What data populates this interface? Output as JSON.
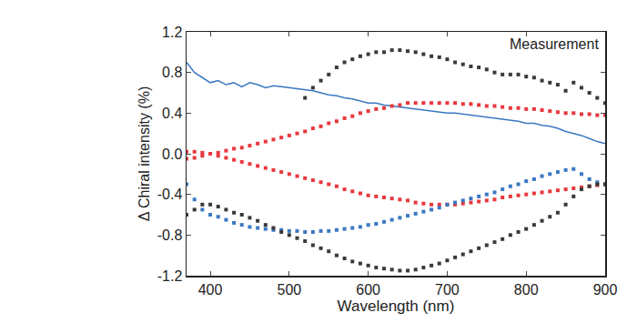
{
  "chart_data": {
    "type": "scatter",
    "x_label": "Wavelength (nm)",
    "y_label": "Δ Chiral intensity (%)",
    "annotations": [
      "Measurement"
    ],
    "xlim": [
      370,
      900
    ],
    "xticks": [
      400,
      500,
      600,
      700,
      800,
      900
    ],
    "ylim": [
      -1.2,
      1.2
    ],
    "yticks": [
      1.2,
      0.8,
      0.4,
      {
        "value": 0,
        "label": "0.0"
      },
      -0.4,
      -0.8,
      -1.2
    ],
    "grid": false,
    "x": [
      370,
      380,
      390,
      400,
      410,
      420,
      430,
      440,
      450,
      460,
      470,
      480,
      490,
      500,
      510,
      520,
      530,
      540,
      550,
      560,
      570,
      580,
      590,
      600,
      610,
      620,
      630,
      640,
      650,
      660,
      670,
      680,
      690,
      700,
      710,
      720,
      730,
      740,
      750,
      760,
      770,
      780,
      790,
      800,
      810,
      820,
      830,
      840,
      850,
      860,
      870,
      880,
      890,
      900
    ],
    "series": [
      {
        "color": "#3a3a3a",
        "marker": "square",
        "values": [
          null,
          null,
          null,
          null,
          null,
          null,
          null,
          null,
          null,
          null,
          null,
          null,
          null,
          null,
          null,
          0.55,
          0.65,
          0.72,
          0.78,
          0.85,
          0.9,
          0.93,
          0.96,
          0.98,
          1.0,
          1.0,
          1.02,
          1.02,
          1.01,
          1.0,
          0.98,
          0.96,
          0.95,
          0.93,
          0.9,
          0.88,
          0.86,
          0.85,
          0.83,
          0.8,
          0.78,
          0.78,
          0.78,
          0.76,
          0.75,
          0.72,
          0.7,
          0.68,
          0.62,
          0.7,
          0.65,
          0.6,
          0.55,
          0.5
        ]
      },
      {
        "color": "#3a78c2",
        "line_style": "solid",
        "values": [
          0.9,
          0.8,
          0.75,
          0.7,
          0.72,
          0.68,
          0.7,
          0.66,
          0.7,
          0.68,
          0.65,
          0.67,
          0.66,
          0.65,
          0.64,
          0.63,
          0.62,
          0.6,
          0.58,
          0.57,
          0.55,
          0.54,
          0.52,
          0.5,
          0.5,
          0.48,
          0.47,
          0.46,
          0.45,
          0.44,
          0.43,
          0.42,
          0.41,
          0.4,
          0.4,
          0.39,
          0.38,
          0.37,
          0.36,
          0.35,
          0.34,
          0.33,
          0.32,
          0.3,
          0.3,
          0.28,
          0.27,
          0.25,
          0.22,
          0.2,
          0.18,
          0.15,
          0.12,
          0.1
        ]
      },
      {
        "color": "#e8383d",
        "marker": "square",
        "values": [
          -0.05,
          -0.04,
          -0.02,
          0.0,
          0.01,
          0.03,
          0.05,
          0.06,
          0.08,
          0.1,
          0.12,
          0.14,
          0.16,
          0.18,
          0.2,
          0.22,
          0.25,
          0.27,
          0.3,
          0.32,
          0.35,
          0.37,
          0.4,
          0.42,
          0.44,
          0.45,
          0.47,
          0.48,
          0.5,
          0.5,
          0.5,
          0.5,
          0.5,
          0.5,
          0.5,
          0.49,
          0.49,
          0.48,
          0.47,
          0.47,
          0.46,
          0.45,
          0.45,
          0.44,
          0.44,
          0.43,
          0.42,
          0.41,
          0.4,
          0.4,
          0.39,
          0.39,
          0.38,
          0.38
        ]
      },
      {
        "color": "#e8383d",
        "marker": "square",
        "values": [
          0.02,
          0.02,
          0.01,
          0.0,
          -0.02,
          -0.04,
          -0.06,
          -0.08,
          -0.1,
          -0.12,
          -0.14,
          -0.16,
          -0.18,
          -0.2,
          -0.22,
          -0.24,
          -0.26,
          -0.28,
          -0.3,
          -0.32,
          -0.35,
          -0.37,
          -0.39,
          -0.41,
          -0.42,
          -0.43,
          -0.44,
          -0.45,
          -0.46,
          -0.48,
          -0.49,
          -0.5,
          -0.5,
          -0.5,
          -0.5,
          -0.49,
          -0.48,
          -0.47,
          -0.46,
          -0.45,
          -0.43,
          -0.42,
          -0.41,
          -0.4,
          -0.39,
          -0.38,
          -0.37,
          -0.36,
          -0.35,
          -0.34,
          -0.33,
          -0.32,
          -0.31,
          -0.3
        ]
      },
      {
        "color": "#3a78c2",
        "marker": "square",
        "values": [
          -0.3,
          -0.45,
          -0.55,
          -0.6,
          -0.62,
          -0.65,
          -0.68,
          -0.7,
          -0.72,
          -0.73,
          -0.74,
          -0.75,
          -0.75,
          -0.76,
          -0.76,
          -0.77,
          -0.77,
          -0.76,
          -0.76,
          -0.75,
          -0.74,
          -0.73,
          -0.72,
          -0.7,
          -0.69,
          -0.67,
          -0.65,
          -0.63,
          -0.61,
          -0.59,
          -0.57,
          -0.55,
          -0.53,
          -0.5,
          -0.48,
          -0.46,
          -0.44,
          -0.42,
          -0.4,
          -0.38,
          -0.35,
          -0.32,
          -0.3,
          -0.27,
          -0.25,
          -0.22,
          -0.2,
          -0.18,
          -0.16,
          -0.15,
          -0.2,
          -0.25,
          -0.28,
          -0.3
        ]
      },
      {
        "color": "#3a3a3a",
        "marker": "square",
        "values": [
          -0.6,
          -0.55,
          -0.5,
          -0.5,
          -0.52,
          -0.55,
          -0.58,
          -0.6,
          -0.63,
          -0.66,
          -0.7,
          -0.73,
          -0.77,
          -0.8,
          -0.83,
          -0.86,
          -0.9,
          -0.93,
          -0.96,
          -1.0,
          -1.03,
          -1.06,
          -1.08,
          -1.1,
          -1.12,
          -1.13,
          -1.14,
          -1.15,
          -1.15,
          -1.14,
          -1.12,
          -1.1,
          -1.08,
          -1.05,
          -1.02,
          -0.99,
          -0.96,
          -0.93,
          -0.9,
          -0.87,
          -0.84,
          -0.8,
          -0.77,
          -0.74,
          -0.7,
          -0.66,
          -0.62,
          -0.58,
          -0.5,
          -0.42,
          -0.35,
          -0.32,
          -0.3,
          -0.3
        ]
      }
    ]
  }
}
